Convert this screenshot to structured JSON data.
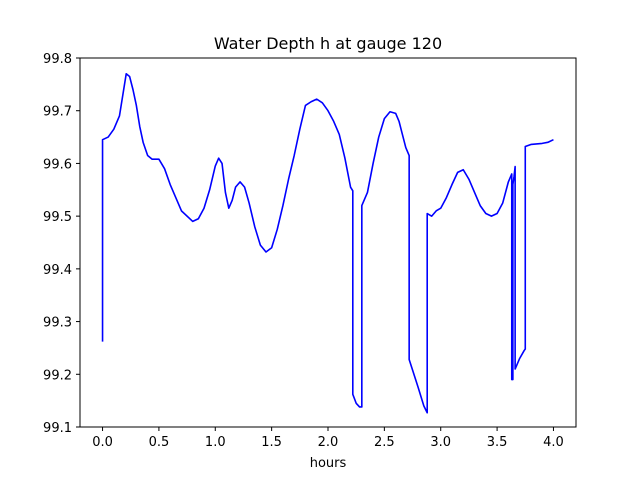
{
  "chart_data": {
    "type": "line",
    "title": "Water Depth h at gauge 120",
    "xlabel": "hours",
    "ylabel": "",
    "xlim": [
      -0.2,
      4.2
    ],
    "ylim": [
      99.1,
      99.8
    ],
    "xticks": [
      0.0,
      0.5,
      1.0,
      1.5,
      2.0,
      2.5,
      3.0,
      3.5,
      4.0
    ],
    "xtick_labels": [
      "0.0",
      "0.5",
      "1.0",
      "1.5",
      "2.0",
      "2.5",
      "3.0",
      "3.5",
      "4.0"
    ],
    "yticks": [
      99.1,
      99.2,
      99.3,
      99.4,
      99.5,
      99.6,
      99.7,
      99.8
    ],
    "ytick_labels": [
      "99.1",
      "99.2",
      "99.3",
      "99.4",
      "99.5",
      "99.6",
      "99.7",
      "99.8"
    ],
    "grid": false,
    "series": [
      {
        "color": "#0000ff",
        "x": [
          0.0,
          0.0,
          0.05,
          0.1,
          0.15,
          0.18,
          0.21,
          0.24,
          0.27,
          0.3,
          0.33,
          0.36,
          0.4,
          0.44,
          0.5,
          0.55,
          0.6,
          0.7,
          0.8,
          0.85,
          0.9,
          0.95,
          1.0,
          1.03,
          1.06,
          1.09,
          1.12,
          1.15,
          1.18,
          1.22,
          1.26,
          1.3,
          1.35,
          1.4,
          1.45,
          1.5,
          1.55,
          1.6,
          1.65,
          1.7,
          1.75,
          1.8,
          1.85,
          1.9,
          1.95,
          2.0,
          2.05,
          2.1,
          2.15,
          2.2,
          2.22,
          2.22,
          2.25,
          2.28,
          2.3,
          2.3,
          2.35,
          2.4,
          2.45,
          2.5,
          2.55,
          2.6,
          2.63,
          2.66,
          2.69,
          2.72,
          2.72,
          2.8,
          2.85,
          2.88,
          2.88,
          2.92,
          2.96,
          3.0,
          3.05,
          3.1,
          3.15,
          3.2,
          3.25,
          3.3,
          3.35,
          3.4,
          3.45,
          3.5,
          3.55,
          3.6,
          3.63,
          3.63,
          3.64,
          3.64,
          3.65,
          3.66,
          3.66,
          3.7,
          3.74,
          3.75,
          3.75,
          3.8,
          3.9,
          3.95,
          4.0
        ],
        "values": [
          99.262,
          99.645,
          99.65,
          99.665,
          99.69,
          99.73,
          99.77,
          99.765,
          99.74,
          99.71,
          99.67,
          99.64,
          99.615,
          99.608,
          99.608,
          99.59,
          99.56,
          99.51,
          99.49,
          99.495,
          99.515,
          99.55,
          99.595,
          99.61,
          99.6,
          99.545,
          99.515,
          99.53,
          99.555,
          99.565,
          99.555,
          99.525,
          99.48,
          99.445,
          99.432,
          99.44,
          99.475,
          99.52,
          99.57,
          99.615,
          99.665,
          99.71,
          99.717,
          99.722,
          99.715,
          99.7,
          99.68,
          99.655,
          99.61,
          99.555,
          99.548,
          99.162,
          99.145,
          99.138,
          99.138,
          99.52,
          99.545,
          99.6,
          99.65,
          99.685,
          99.698,
          99.695,
          99.68,
          99.655,
          99.63,
          99.615,
          99.228,
          99.175,
          99.14,
          99.127,
          99.505,
          99.5,
          99.51,
          99.515,
          99.535,
          99.56,
          99.583,
          99.588,
          99.57,
          99.545,
          99.52,
          99.505,
          99.5,
          99.505,
          99.525,
          99.565,
          99.58,
          99.19,
          99.19,
          99.56,
          99.575,
          99.594,
          99.21,
          99.23,
          99.245,
          99.248,
          99.632,
          99.636,
          99.638,
          99.64,
          99.645
        ]
      }
    ]
  }
}
